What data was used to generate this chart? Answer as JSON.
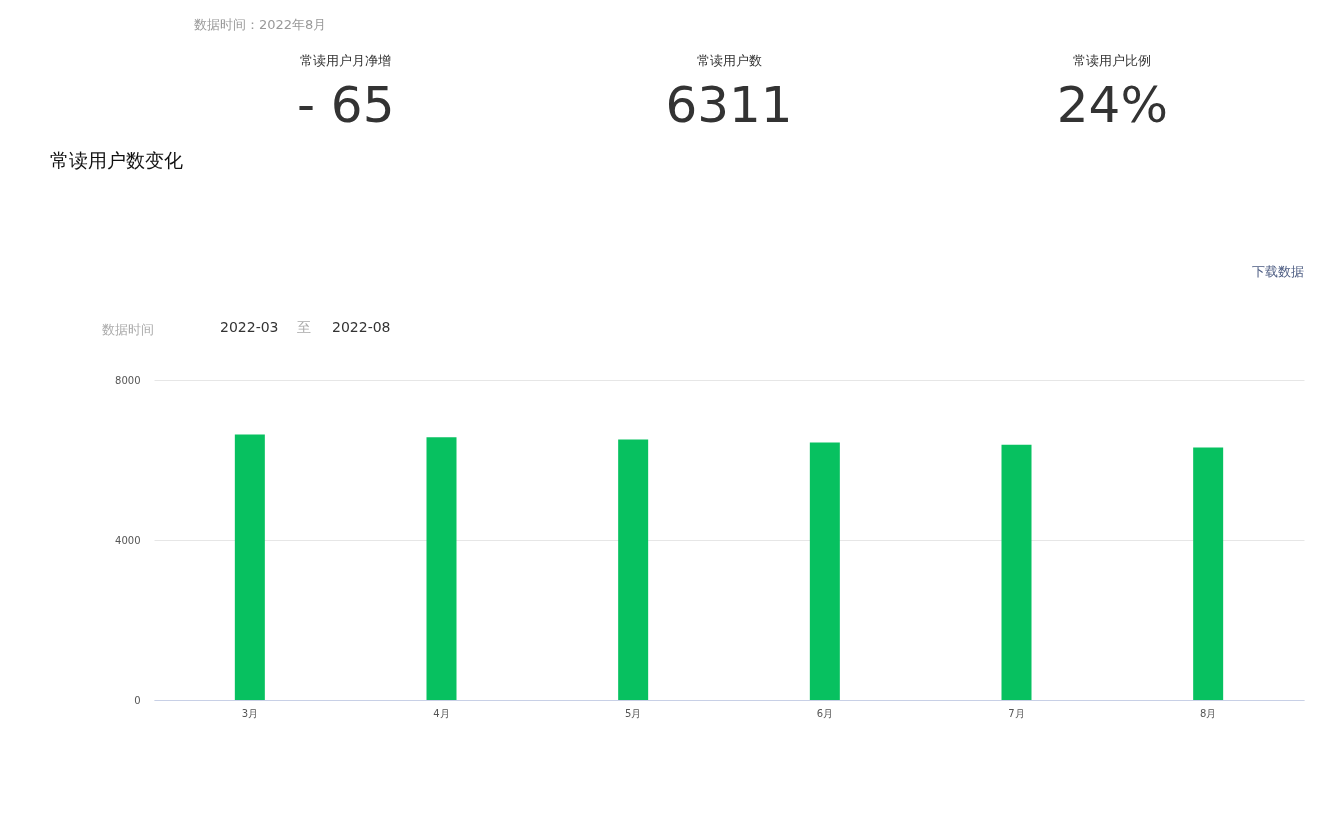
{
  "chart_data": [
    {
      "type": "other",
      "subtitle": "数据时间：2022年8月",
      "annotations": [
        "常读用户月净增",
        "- 65",
        "常读用户数",
        "6311",
        "常读用户比例",
        "24%"
      ]
    },
    {
      "type": "bar",
      "title": "常读用户数变化",
      "annotations": [
        "下载数据",
        "数据时间",
        "2022-03",
        "至",
        "2022-08"
      ],
      "categories": [
        "3月",
        "4月",
        "5月",
        "6月",
        "7月",
        "8月"
      ],
      "values": [
        6640,
        6570,
        6510,
        6440,
        6380,
        6310
      ],
      "color": "#07c160",
      "ylim": [
        0,
        8000
      ],
      "yticks": [
        0,
        4000,
        8000
      ],
      "grid": "y"
    }
  ]
}
